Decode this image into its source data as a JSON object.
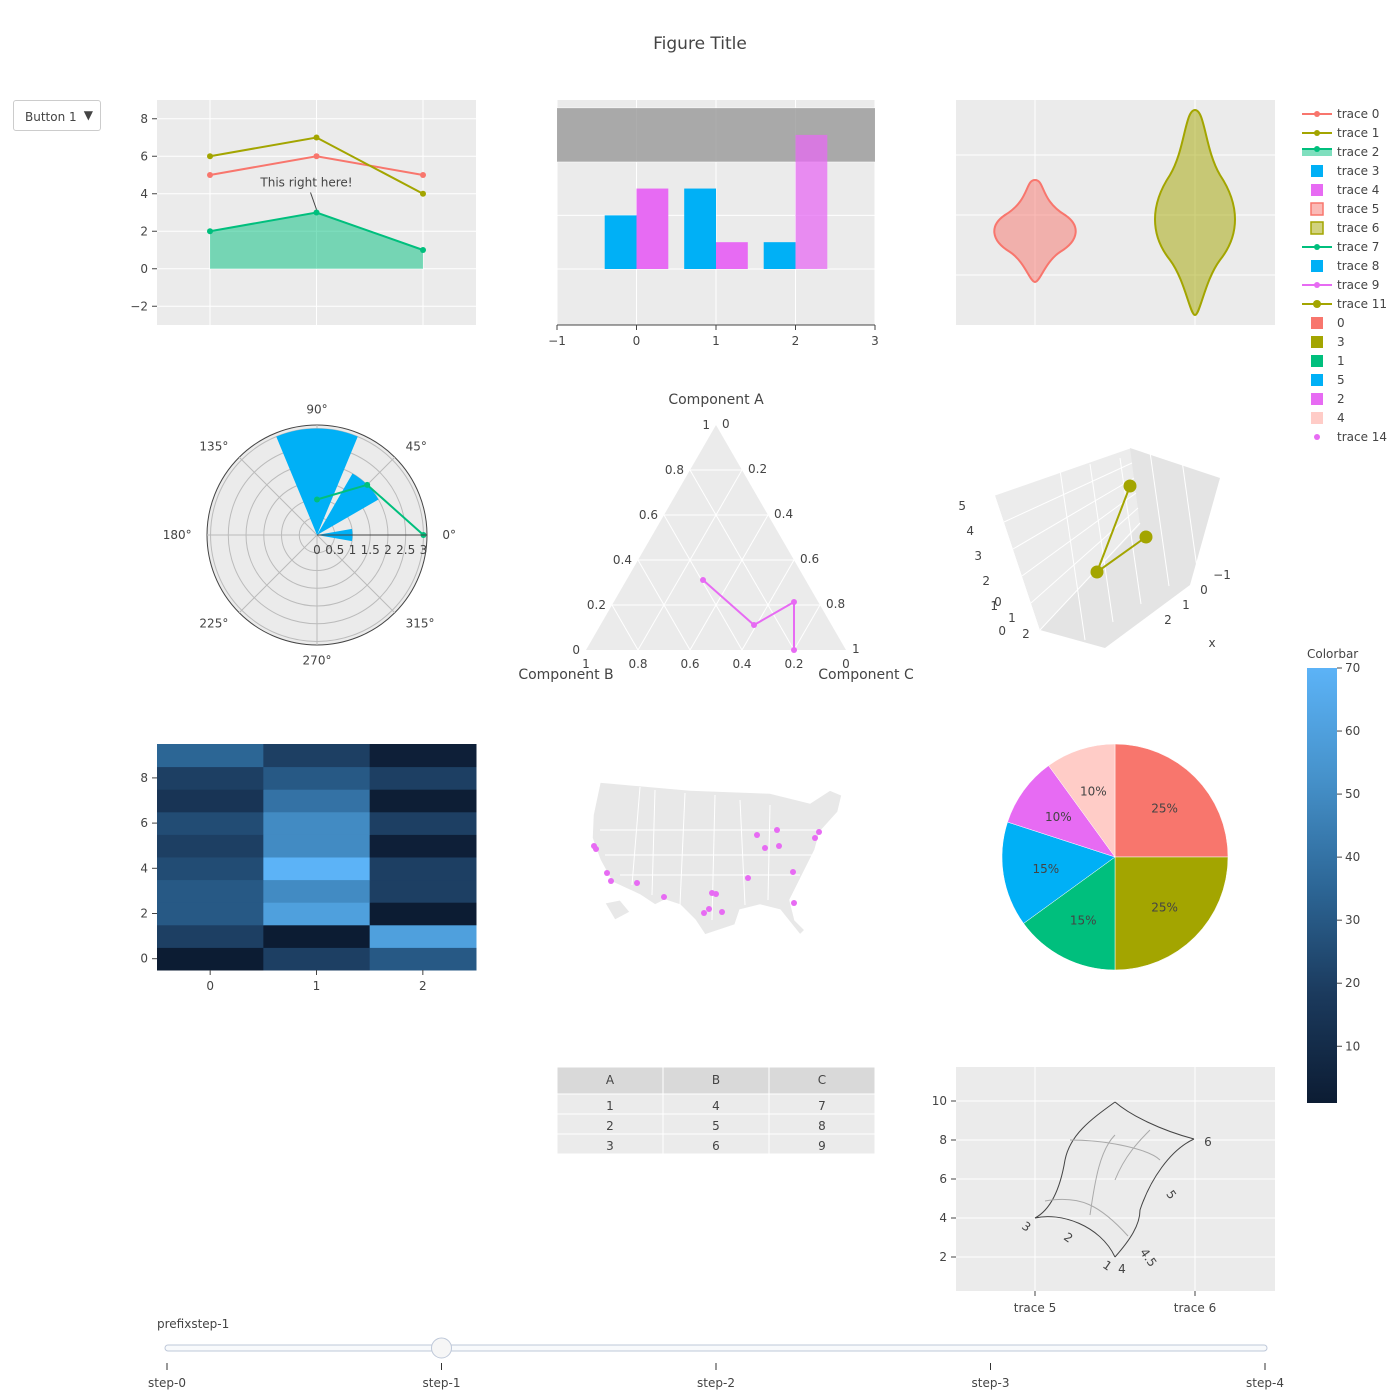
{
  "figure": {
    "title": "Figure Title"
  },
  "menu": {
    "button_label": "Button 1",
    "arrow": "▼"
  },
  "chart_data": [
    {
      "type": "line",
      "name": "lines-subplot",
      "x": [
        0,
        1,
        2
      ],
      "ylim": [
        -3,
        9
      ],
      "yticks": [
        "8",
        "6",
        "4",
        "2",
        "0",
        "−2"
      ],
      "series": [
        {
          "name": "trace 0",
          "y": [
            5,
            6,
            5
          ],
          "color": "#F8766D"
        },
        {
          "name": "trace 1",
          "y": [
            6,
            7,
            4
          ],
          "color": "#A3A500"
        },
        {
          "name": "trace 2",
          "y": [
            2,
            3,
            1
          ],
          "color": "#00BF7D",
          "fill": "tozeroy"
        }
      ],
      "annotation": {
        "text": "This right here!",
        "x": 1,
        "y": 3
      }
    },
    {
      "type": "bar",
      "name": "bars-subplot",
      "x": [
        0,
        1,
        2
      ],
      "xlim": [
        -1,
        3
      ],
      "xticks": [
        "−1",
        "0",
        "1",
        "2",
        "3"
      ],
      "series": [
        {
          "name": "trace 3",
          "values": [
            2,
            3,
            1
          ],
          "color": "#00B0F6"
        },
        {
          "name": "trace 4",
          "values": [
            3,
            1,
            5
          ],
          "color": "#E76BF3"
        }
      ],
      "shape": {
        "y0": 4,
        "y1": 6,
        "color": "#999999"
      }
    },
    {
      "type": "violin",
      "name": "violin-subplot",
      "series": [
        {
          "name": "trace 5",
          "color": "#F8766D"
        },
        {
          "name": "trace 6",
          "color": "#A3A500"
        }
      ]
    },
    {
      "type": "barpolar",
      "name": "polar-subplot",
      "angular_ticks": [
        "0°",
        "45°",
        "90°",
        "135°",
        "180°",
        "225°",
        "270°",
        "315°"
      ],
      "radial_ticks": [
        "0",
        "0.5",
        "1",
        "1.5",
        "2",
        "2.5",
        "3"
      ],
      "bars": [
        {
          "theta": 90,
          "r": 3,
          "width": 45
        },
        {
          "theta": 45,
          "r": 2,
          "width": 30
        },
        {
          "theta": 0,
          "r": 1,
          "width": 20
        }
      ],
      "series": [
        {
          "name": "trace 7",
          "r": [
            1,
            2,
            3
          ],
          "theta": [
            90,
            45,
            0
          ],
          "color": "#00BF7D"
        }
      ]
    },
    {
      "type": "ternary",
      "name": "ternary-subplot",
      "axis_titles": {
        "a": "Component A",
        "b": "Component B",
        "c": "Component C"
      },
      "ticks": [
        "0",
        "0.2",
        "0.4",
        "0.6",
        "0.8",
        "1"
      ],
      "series": [
        {
          "name": "trace 9",
          "color": "#E76BF3",
          "points": [
            {
              "a": 0.2,
              "b": 0.3,
              "c": 0.5
            },
            {
              "a": 0.25,
              "b": 0.5,
              "c": 0.25
            },
            {
              "a": 0.2,
              "b": 0.0,
              "c": 0.8
            },
            {
              "a": 0.0,
              "b": 0.0,
              "c": 1.0
            }
          ]
        }
      ]
    },
    {
      "type": "scatter3d",
      "name": "scene-subplot",
      "axis_title": "x",
      "xticks": [
        "−1",
        "0",
        "1",
        "2"
      ],
      "zticks": [
        "5",
        "4",
        "3",
        "2",
        "1",
        "0"
      ],
      "yticks": [
        "0",
        "1",
        "2"
      ],
      "series": [
        {
          "name": "trace 11",
          "color": "#A3A500",
          "x": [
            1,
            2,
            2
          ],
          "y": [
            0,
            1,
            2
          ],
          "z": [
            5,
            4,
            1
          ]
        }
      ]
    },
    {
      "type": "heatmap",
      "name": "heatmap-subplot",
      "xticks": [
        "0",
        "1",
        "2"
      ],
      "yticks": [
        "8",
        "6",
        "4",
        "2",
        "0"
      ],
      "z": [
        [
          1,
          20,
          30
        ],
        [
          20,
          1,
          60
        ],
        [
          30,
          60,
          1
        ],
        [
          30,
          50,
          20
        ],
        [
          25,
          70,
          20
        ],
        [
          20,
          50,
          3
        ],
        [
          25,
          50,
          20
        ],
        [
          15,
          40,
          2
        ],
        [
          20,
          30,
          20
        ],
        [
          35,
          20,
          3
        ]
      ],
      "colorbar": {
        "title": "Colorbar",
        "ticks": [
          "70",
          "60",
          "50",
          "40",
          "30",
          "20",
          "10"
        ],
        "range": [
          1,
          70
        ]
      }
    },
    {
      "type": "scattergeo",
      "name": "geo-subplot",
      "scope": "usa",
      "series": [
        {
          "name": "trace 14",
          "color": "#E76BF3"
        }
      ]
    },
    {
      "type": "pie",
      "name": "pie-subplot",
      "labels": [
        "0",
        "3",
        "1",
        "5",
        "2",
        "4"
      ],
      "values": [
        25,
        25,
        15,
        15,
        10,
        10
      ],
      "colors": [
        "#F8766D",
        "#A3A500",
        "#00BF7D",
        "#00B0F6",
        "#E76BF3",
        "#FFCCC7"
      ],
      "text": [
        "25%",
        "25%",
        "15%",
        "15%",
        "10%",
        "10%"
      ]
    },
    {
      "type": "table",
      "name": "table-subplot",
      "header": [
        "A",
        "B",
        "C"
      ],
      "rows": [
        [
          "1",
          "4",
          "7"
        ],
        [
          "2",
          "5",
          "8"
        ],
        [
          "3",
          "6",
          "9"
        ]
      ]
    },
    {
      "type": "carpet",
      "name": "carpet-subplot",
      "xticks": [
        "trace 5",
        "trace 6"
      ],
      "yticks": [
        "10",
        "8",
        "6",
        "4",
        "2"
      ],
      "a_labels": [
        "4",
        "4.5",
        "5",
        "6"
      ],
      "b_labels": [
        "1",
        "2",
        "3"
      ]
    }
  ],
  "legend": {
    "items": [
      {
        "label": "trace 0",
        "kind": "line-marker",
        "color": "#F8766D"
      },
      {
        "label": "trace 1",
        "kind": "line-marker",
        "color": "#A3A500"
      },
      {
        "label": "trace 2",
        "kind": "fill-line",
        "color": "#00BF7D"
      },
      {
        "label": "trace 3",
        "kind": "square",
        "color": "#00B0F6"
      },
      {
        "label": "trace 4",
        "kind": "square",
        "color": "#E76BF3"
      },
      {
        "label": "trace 5",
        "kind": "box",
        "color": "#F8766D"
      },
      {
        "label": "trace 6",
        "kind": "box",
        "color": "#A3A500"
      },
      {
        "label": "trace 7",
        "kind": "line-marker",
        "color": "#00BF7D"
      },
      {
        "label": "trace 8",
        "kind": "square",
        "color": "#00B0F6"
      },
      {
        "label": "trace 9",
        "kind": "line-marker",
        "color": "#E76BF3"
      },
      {
        "label": "trace 11",
        "kind": "line-big",
        "color": "#A3A500"
      },
      {
        "label": "0",
        "kind": "square",
        "color": "#F8766D"
      },
      {
        "label": "3",
        "kind": "square",
        "color": "#A3A500"
      },
      {
        "label": "1",
        "kind": "square",
        "color": "#00BF7D"
      },
      {
        "label": "5",
        "kind": "square",
        "color": "#00B0F6"
      },
      {
        "label": "2",
        "kind": "square",
        "color": "#E76BF3"
      },
      {
        "label": "4",
        "kind": "square",
        "color": "#FFCCC7"
      },
      {
        "label": "trace 14",
        "kind": "dot",
        "color": "#E76BF3"
      }
    ]
  },
  "slider": {
    "current_label": "prefixstep-1",
    "steps": [
      "step-0",
      "step-1",
      "step-2",
      "step-3",
      "step-4"
    ],
    "active": 1
  }
}
